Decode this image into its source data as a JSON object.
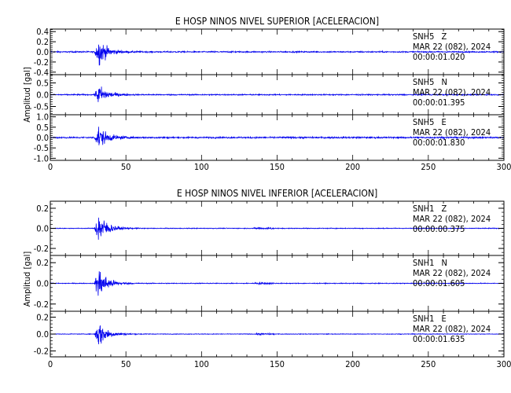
{
  "chart_data": [
    {
      "type": "line",
      "title": "E HOSP NINOS NIVEL SUPERIOR [ACELERACION]",
      "ylabel": "Amplitud [gal]",
      "xlabel": "",
      "xlim": [
        0,
        300
      ],
      "x_ticks": [
        0,
        50,
        100,
        150,
        200,
        250,
        300
      ],
      "line_color": "#0000ee",
      "event_time": 30,
      "traces": [
        {
          "station": "SNH5",
          "component": "Z",
          "date": "MAR 22 (082), 2024",
          "time": "00:00:01.020",
          "ylim": [
            -0.45,
            0.45
          ],
          "y_ticks": [
            -0.4,
            -0.2,
            0.0,
            0.2,
            0.4
          ],
          "y_tick_labels": [
            "-0.4",
            "-0.2",
            "0.0",
            "0.2",
            "0.4"
          ],
          "noise_amplitude": 0.02,
          "peak_amplitude": 0.45
        },
        {
          "station": "SNH5",
          "component": "N",
          "date": "MAR 22 (082), 2024",
          "time": "00:00:01.395",
          "ylim": [
            -0.85,
            0.85
          ],
          "y_ticks": [
            -0.5,
            0.0,
            0.5
          ],
          "y_tick_labels": [
            "-0.5",
            "0.0",
            "0.5"
          ],
          "noise_amplitude": 0.04,
          "peak_amplitude": 0.7
        },
        {
          "station": "SNH5",
          "component": "E",
          "date": "MAR 22 (082), 2024",
          "time": "00:00:01.830",
          "ylim": [
            -1.1,
            1.1
          ],
          "y_ticks": [
            -1.0,
            -0.5,
            0.0,
            0.5,
            1.0
          ],
          "y_tick_labels": [
            "-1.0",
            "-0.5",
            "0.0",
            "0.5",
            "1.0"
          ],
          "noise_amplitude": 0.06,
          "peak_amplitude": 0.9
        }
      ]
    },
    {
      "type": "line",
      "title": "E HOSP NINOS NIVEL INFERIOR [ACELERACION]",
      "ylabel": "Amplitud [gal]",
      "xlabel": "",
      "xlim": [
        0,
        300
      ],
      "x_ticks": [
        0,
        50,
        100,
        150,
        200,
        250,
        300
      ],
      "line_color": "#0000ee",
      "event_time": 30,
      "traces": [
        {
          "station": "SNH1",
          "component": "Z",
          "date": "MAR 22 (082), 2024",
          "time": "00:00:00.375",
          "ylim": [
            -0.27,
            0.27
          ],
          "y_ticks": [
            -0.2,
            0.0,
            0.2
          ],
          "y_tick_labels": [
            "-0.2",
            "0.0",
            "0.2"
          ],
          "noise_amplitude": 0.006,
          "peak_amplitude": 0.27
        },
        {
          "station": "SNH1",
          "component": "N",
          "date": "MAR 22 (082), 2024",
          "time": "00:00:01.605",
          "ylim": [
            -0.27,
            0.27
          ],
          "y_ticks": [
            -0.2,
            0.0,
            0.2
          ],
          "y_tick_labels": [
            "-0.2",
            "0.0",
            "0.2"
          ],
          "noise_amplitude": 0.006,
          "peak_amplitude": 0.27
        },
        {
          "station": "SNH1",
          "component": "E",
          "date": "MAR 22 (082), 2024",
          "time": "00:00:01.635",
          "ylim": [
            -0.27,
            0.27
          ],
          "y_ticks": [
            -0.2,
            0.0,
            0.2
          ],
          "y_tick_labels": [
            "-0.2",
            "0.0",
            "0.2"
          ],
          "noise_amplitude": 0.006,
          "peak_amplitude": 0.27
        }
      ]
    }
  ]
}
